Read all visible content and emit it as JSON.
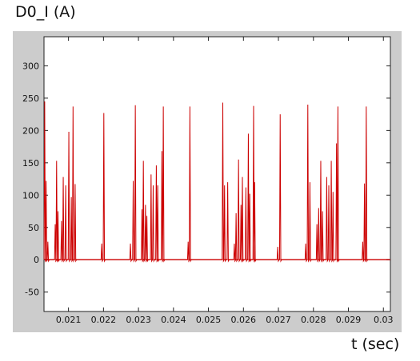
{
  "figure": {
    "title": "D0_I (A)",
    "xlabel": "t (sec)"
  },
  "chart_data": {
    "type": "line",
    "title": "D0_I (A)",
    "xlabel": "t (sec)",
    "ylabel": "",
    "xlim": [
      0.0203,
      0.0302
    ],
    "ylim": [
      -80,
      345
    ],
    "xticks": [
      0.021,
      0.022,
      0.023,
      0.024,
      0.025,
      0.026,
      0.027,
      0.028,
      0.029,
      0.03
    ],
    "xtick_labels": [
      "0.021",
      "0.022",
      "0.023",
      "0.024",
      "0.025",
      "0.026",
      "0.027",
      "0.028",
      "0.029",
      "0.03"
    ],
    "yticks": [
      -50,
      0,
      50,
      100,
      150,
      200,
      250,
      300
    ],
    "ytick_labels": [
      "-50",
      "0",
      "50",
      "100",
      "150",
      "200",
      "250",
      "300"
    ],
    "grid": false,
    "line_color": "#cc0000",
    "spikes": {
      "x": [
        0.02032,
        0.02036,
        0.02041,
        0.02062,
        0.02066,
        0.0207,
        0.0208,
        0.02085,
        0.02092,
        0.02101,
        0.02108,
        0.02113,
        0.02119,
        0.02195,
        0.02201,
        0.02277,
        0.02285,
        0.02291,
        0.0231,
        0.02314,
        0.0232,
        0.02324,
        0.02336,
        0.02342,
        0.02351,
        0.02355,
        0.02367,
        0.02371,
        0.02442,
        0.02447,
        0.02555,
        0.02541,
        0.02546,
        0.02574,
        0.02579,
        0.02586,
        0.02593,
        0.02597,
        0.02607,
        0.02614,
        0.02618,
        0.02629,
        0.02632,
        0.02698,
        0.02705,
        0.02778,
        0.02784,
        0.0279,
        0.0281,
        0.02815,
        0.02821,
        0.02826,
        0.02838,
        0.02844,
        0.02851,
        0.02856,
        0.02866,
        0.0287,
        0.02941,
        0.02946,
        0.02951
      ],
      "y": [
        245,
        122,
        28,
        55,
        153,
        75,
        60,
        128,
        115,
        198,
        97,
        237,
        117,
        25,
        227,
        25,
        122,
        239,
        78,
        153,
        85,
        68,
        132,
        115,
        146,
        115,
        168,
        237,
        28,
        237,
        120,
        243,
        115,
        25,
        72,
        155,
        85,
        128,
        112,
        195,
        102,
        238,
        120,
        20,
        225,
        25,
        240,
        120,
        55,
        80,
        153,
        75,
        128,
        115,
        153,
        105,
        180,
        237,
        28,
        118,
        237
      ]
    }
  }
}
